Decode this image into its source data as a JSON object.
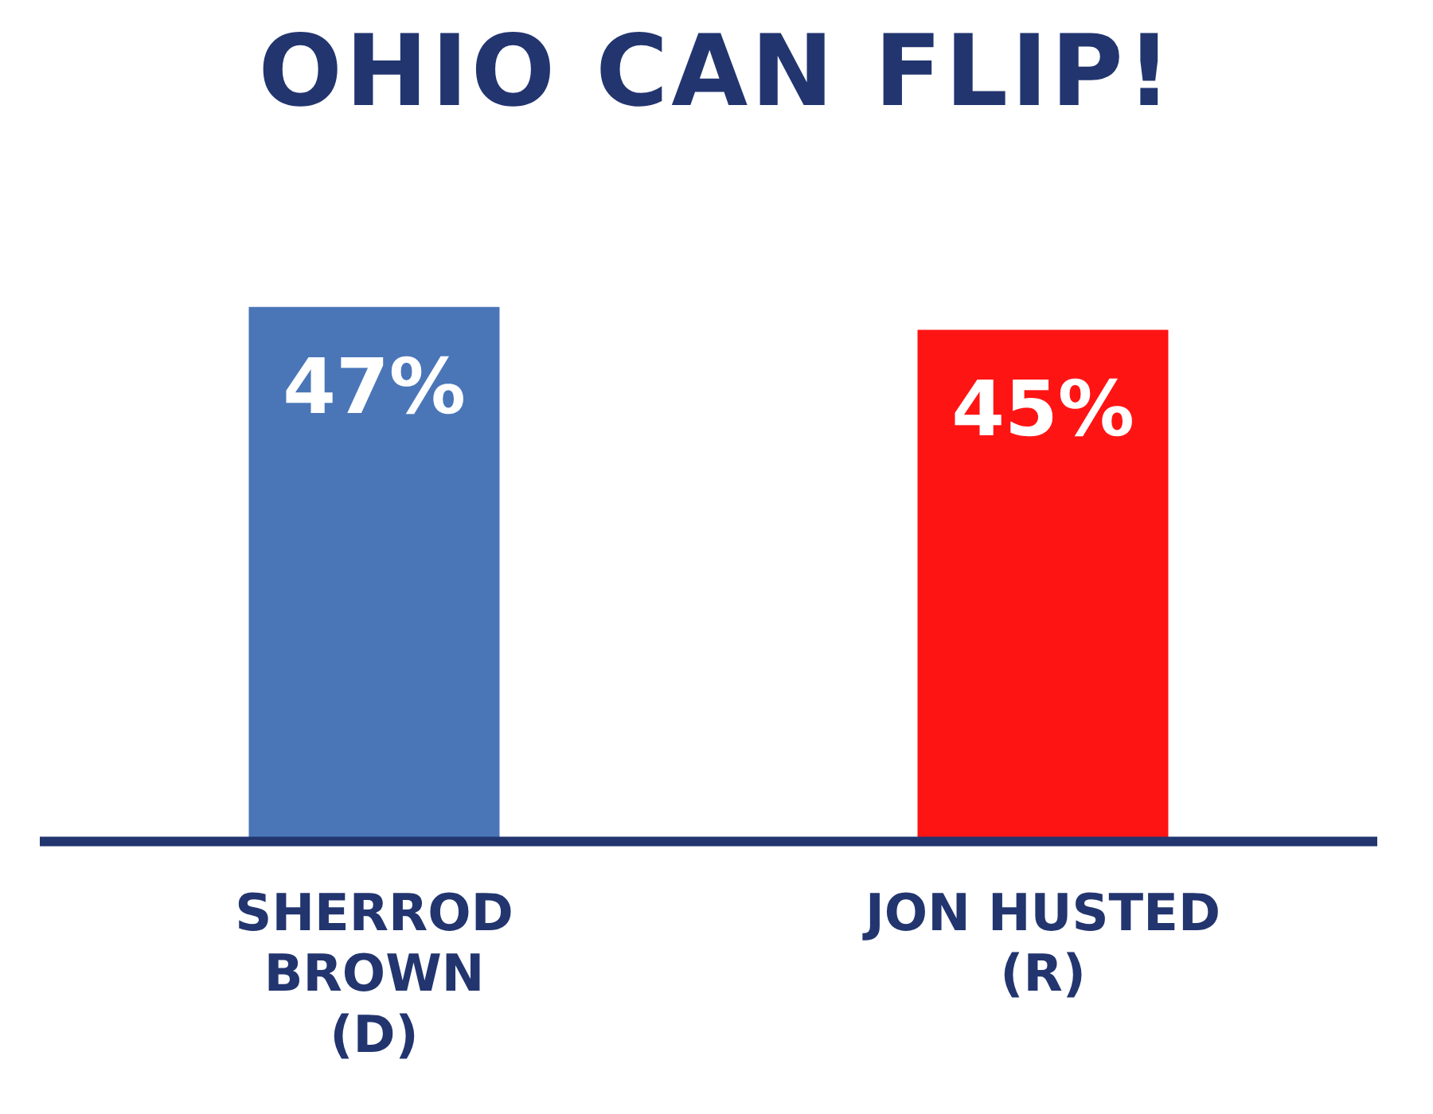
{
  "chart_data": {
    "type": "bar",
    "title": "OHIO CAN FLIP!",
    "categories": [
      "SHERROD\nBROWN\n(D)",
      "JON HUSTED\n(R)"
    ],
    "values": [
      47,
      45
    ],
    "colors": [
      "#4a76b8",
      "#ff1414"
    ],
    "value_labels": [
      "47%",
      "45%"
    ],
    "grid": false,
    "legend": false,
    "tick_labels": "x"
  }
}
